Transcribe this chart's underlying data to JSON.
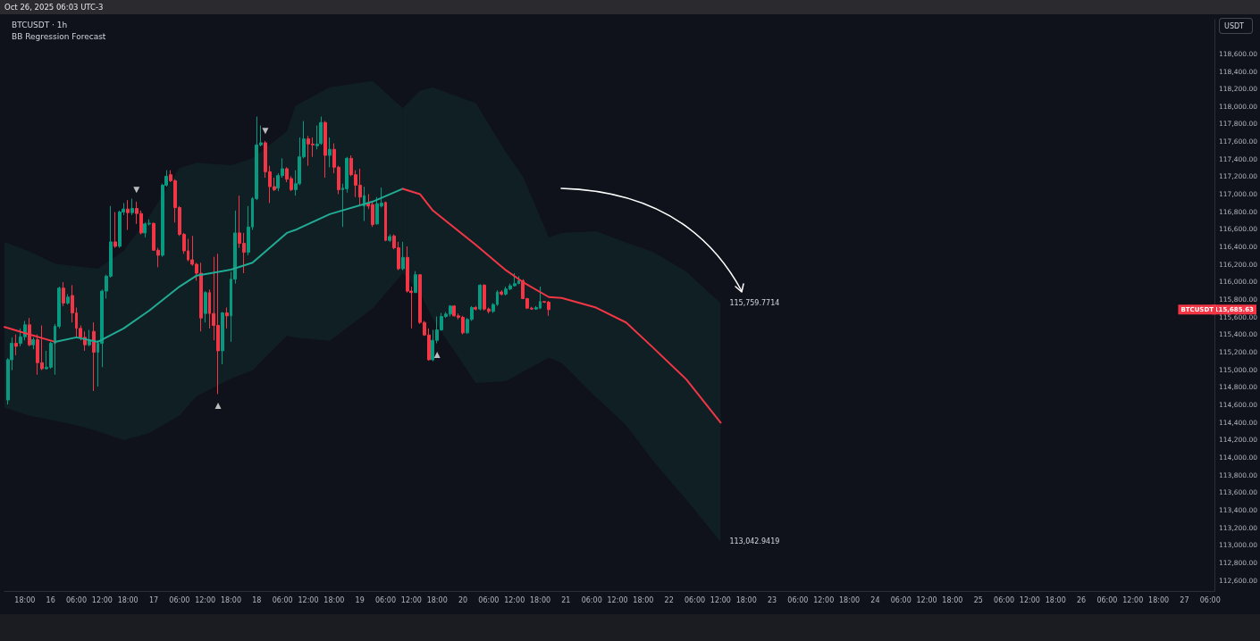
{
  "chart_data": {
    "type": "candlestick",
    "title": "BTCUSDT · 1h",
    "subtitle": "BB Regression Forecast",
    "ylabel": "USDT",
    "grid": false,
    "annotations": [
      "Oct 26, 2025 06:03 UTC-3",
      {
        "text": "115,759.7714",
        "x": "2025-10-22T12:00",
        "y": 115759.7714
      },
      {
        "text": "113,042.9419",
        "x": "2025-10-22T12:00",
        "y": 113042.9419
      },
      "BTCUSDT",
      "115,685.63"
    ],
    "xlim": [
      "2025-10-15T13:15",
      "2025-10-27T07:00"
    ],
    "ylim": [
      112480,
      118990
    ],
    "xticks": [
      {
        "value": "2025-10-15T18:00",
        "label": "18:00"
      },
      {
        "value": "2025-10-16T00:00",
        "label": "16"
      },
      {
        "value": "2025-10-16T06:00",
        "label": "06:00"
      },
      {
        "value": "2025-10-16T12:00",
        "label": "12:00"
      },
      {
        "value": "2025-10-16T18:00",
        "label": "18:00"
      },
      {
        "value": "2025-10-17T00:00",
        "label": "17"
      },
      {
        "value": "2025-10-17T06:00",
        "label": "06:00"
      },
      {
        "value": "2025-10-17T12:00",
        "label": "12:00"
      },
      {
        "value": "2025-10-17T18:00",
        "label": "18:00"
      },
      {
        "value": "2025-10-18T00:00",
        "label": "18"
      },
      {
        "value": "2025-10-18T06:00",
        "label": "06:00"
      },
      {
        "value": "2025-10-18T12:00",
        "label": "12:00"
      },
      {
        "value": "2025-10-18T18:00",
        "label": "18:00"
      },
      {
        "value": "2025-10-19T00:00",
        "label": "19"
      },
      {
        "value": "2025-10-19T06:00",
        "label": "06:00"
      },
      {
        "value": "2025-10-19T12:00",
        "label": "12:00"
      },
      {
        "value": "2025-10-19T18:00",
        "label": "18:00"
      },
      {
        "value": "2025-10-20T00:00",
        "label": "20"
      },
      {
        "value": "2025-10-20T06:00",
        "label": "06:00"
      },
      {
        "value": "2025-10-20T12:00",
        "label": "12:00"
      },
      {
        "value": "2025-10-20T18:00",
        "label": "18:00"
      },
      {
        "value": "2025-10-21T00:00",
        "label": "21"
      },
      {
        "value": "2025-10-21T06:00",
        "label": "06:00"
      },
      {
        "value": "2025-10-21T12:00",
        "label": "12:00"
      },
      {
        "value": "2025-10-21T18:00",
        "label": "18:00"
      },
      {
        "value": "2025-10-22T00:00",
        "label": "22"
      },
      {
        "value": "2025-10-22T06:00",
        "label": "06:00"
      },
      {
        "value": "2025-10-22T12:00",
        "label": "12:00"
      },
      {
        "value": "2025-10-22T18:00",
        "label": "18:00"
      },
      {
        "value": "2025-10-23T00:00",
        "label": "23"
      },
      {
        "value": "2025-10-23T06:00",
        "label": "06:00"
      },
      {
        "value": "2025-10-23T12:00",
        "label": "12:00"
      },
      {
        "value": "2025-10-23T18:00",
        "label": "18:00"
      },
      {
        "value": "2025-10-24T00:00",
        "label": "24"
      },
      {
        "value": "2025-10-24T06:00",
        "label": "06:00"
      },
      {
        "value": "2025-10-24T12:00",
        "label": "12:00"
      },
      {
        "value": "2025-10-24T18:00",
        "label": "18:00"
      },
      {
        "value": "2025-10-25T00:00",
        "label": "25"
      },
      {
        "value": "2025-10-25T06:00",
        "label": "06:00"
      },
      {
        "value": "2025-10-25T12:00",
        "label": "12:00"
      },
      {
        "value": "2025-10-25T18:00",
        "label": "18:00"
      },
      {
        "value": "2025-10-26T00:00",
        "label": "26"
      },
      {
        "value": "2025-10-26T06:00",
        "label": "06:00"
      },
      {
        "value": "2025-10-26T12:00",
        "label": "12:00"
      },
      {
        "value": "2025-10-26T18:00",
        "label": "18:00"
      },
      {
        "value": "2025-10-27T00:00",
        "label": "27"
      },
      {
        "value": "2025-10-27T06:00",
        "label": "06:00"
      }
    ],
    "yticks": [
      {
        "value": 112600,
        "label": "112,600.00"
      },
      {
        "value": 112800,
        "label": "112,800.00"
      },
      {
        "value": 113000,
        "label": "113,000.00"
      },
      {
        "value": 113200,
        "label": "113,200.00"
      },
      {
        "value": 113400,
        "label": "113,400.00"
      },
      {
        "value": 113600,
        "label": "113,600.00"
      },
      {
        "value": 113800,
        "label": "113,800.00"
      },
      {
        "value": 114000,
        "label": "114,000.00"
      },
      {
        "value": 114200,
        "label": "114,200.00"
      },
      {
        "value": 114400,
        "label": "114,400.00"
      },
      {
        "value": 114600,
        "label": "114,600.00"
      },
      {
        "value": 114800,
        "label": "114,800.00"
      },
      {
        "value": 115000,
        "label": "115,000.00"
      },
      {
        "value": 115200,
        "label": "115,200.00"
      },
      {
        "value": 115400,
        "label": "115,400.00"
      },
      {
        "value": 115600,
        "label": "115,600.00"
      },
      {
        "value": 115800,
        "label": "115,800.00"
      },
      {
        "value": 116000,
        "label": "116,000.00"
      },
      {
        "value": 116200,
        "label": "116,200.00"
      },
      {
        "value": 116400,
        "label": "116,400.00"
      },
      {
        "value": 116600,
        "label": "116,600.00"
      },
      {
        "value": 116800,
        "label": "116,800.00"
      },
      {
        "value": 117000,
        "label": "117,000.00"
      },
      {
        "value": 117200,
        "label": "117,200.00"
      },
      {
        "value": 117400,
        "label": "117,400.00"
      },
      {
        "value": 117600,
        "label": "117,600.00"
      },
      {
        "value": 117800,
        "label": "117,800.00"
      },
      {
        "value": 118000,
        "label": "118,000.00"
      },
      {
        "value": 118200,
        "label": "118,200.00"
      },
      {
        "value": 118400,
        "label": "118,400.00"
      },
      {
        "value": 118600,
        "label": "118,600.00"
      }
    ],
    "x": [
      "2025-10-15T14:00",
      "2025-10-15T15:00",
      "2025-10-15T16:00",
      "2025-10-15T17:00",
      "2025-10-15T18:00",
      "2025-10-15T19:00",
      "2025-10-15T20:00",
      "2025-10-15T21:00",
      "2025-10-15T22:00",
      "2025-10-15T23:00",
      "2025-10-16T00:00",
      "2025-10-16T01:00",
      "2025-10-16T02:00",
      "2025-10-16T03:00",
      "2025-10-16T04:00",
      "2025-10-16T05:00",
      "2025-10-16T06:00",
      "2025-10-16T07:00",
      "2025-10-16T08:00",
      "2025-10-16T09:00",
      "2025-10-16T10:00",
      "2025-10-16T11:00",
      "2025-10-16T12:00",
      "2025-10-16T13:00",
      "2025-10-16T14:00",
      "2025-10-16T15:00",
      "2025-10-16T16:00",
      "2025-10-16T17:00",
      "2025-10-16T18:00",
      "2025-10-16T19:00",
      "2025-10-16T20:00",
      "2025-10-16T21:00",
      "2025-10-16T22:00",
      "2025-10-16T23:00",
      "2025-10-17T00:00",
      "2025-10-17T01:00",
      "2025-10-17T02:00",
      "2025-10-17T03:00",
      "2025-10-17T04:00",
      "2025-10-17T05:00",
      "2025-10-17T06:00",
      "2025-10-17T07:00",
      "2025-10-17T08:00",
      "2025-10-17T09:00",
      "2025-10-17T10:00",
      "2025-10-17T11:00",
      "2025-10-17T12:00",
      "2025-10-17T13:00",
      "2025-10-17T14:00",
      "2025-10-17T15:00",
      "2025-10-17T16:00",
      "2025-10-17T17:00",
      "2025-10-17T18:00",
      "2025-10-17T19:00",
      "2025-10-17T20:00",
      "2025-10-17T21:00",
      "2025-10-17T22:00",
      "2025-10-17T23:00",
      "2025-10-18T00:00",
      "2025-10-18T01:00",
      "2025-10-18T02:00",
      "2025-10-18T03:00",
      "2025-10-18T04:00",
      "2025-10-18T05:00",
      "2025-10-18T06:00",
      "2025-10-18T07:00",
      "2025-10-18T08:00",
      "2025-10-18T09:00",
      "2025-10-18T10:00",
      "2025-10-18T11:00",
      "2025-10-18T12:00",
      "2025-10-18T13:00",
      "2025-10-18T14:00",
      "2025-10-18T15:00",
      "2025-10-18T16:00",
      "2025-10-18T17:00",
      "2025-10-18T18:00",
      "2025-10-18T19:00",
      "2025-10-18T20:00",
      "2025-10-18T21:00",
      "2025-10-18T22:00",
      "2025-10-18T23:00",
      "2025-10-19T00:00",
      "2025-10-19T01:00",
      "2025-10-19T02:00",
      "2025-10-19T03:00",
      "2025-10-19T04:00",
      "2025-10-19T05:00",
      "2025-10-19T06:00",
      "2025-10-19T07:00",
      "2025-10-19T08:00",
      "2025-10-19T09:00",
      "2025-10-19T10:00",
      "2025-10-19T11:00",
      "2025-10-19T12:00",
      "2025-10-19T13:00",
      "2025-10-19T14:00",
      "2025-10-19T15:00",
      "2025-10-19T16:00",
      "2025-10-19T17:00",
      "2025-10-19T18:00",
      "2025-10-19T19:00",
      "2025-10-19T20:00",
      "2025-10-19T21:00",
      "2025-10-19T22:00",
      "2025-10-19T23:00",
      "2025-10-20T00:00",
      "2025-10-20T01:00",
      "2025-10-20T02:00",
      "2025-10-20T03:00",
      "2025-10-20T04:00",
      "2025-10-20T05:00",
      "2025-10-20T06:00",
      "2025-10-20T07:00",
      "2025-10-20T08:00",
      "2025-10-20T09:00",
      "2025-10-20T10:00",
      "2025-10-20T11:00",
      "2025-10-20T12:00",
      "2025-10-20T13:00",
      "2025-10-20T14:00",
      "2025-10-20T15:00",
      "2025-10-20T16:00",
      "2025-10-20T17:00",
      "2025-10-20T18:00",
      "2025-10-20T19:00",
      "2025-10-20T20:00"
    ],
    "ohlc": [
      [
        114656,
        115132,
        114605,
        115115
      ],
      [
        115115,
        115370,
        114996,
        115302
      ],
      [
        115302,
        115404,
        115166,
        115268
      ],
      [
        115302,
        115472,
        115268,
        115377
      ],
      [
        115377,
        115557,
        115336,
        115513
      ],
      [
        115513,
        115591,
        115268,
        115285
      ],
      [
        115285,
        115370,
        115234,
        115343
      ],
      [
        115343,
        115404,
        114945,
        115081
      ],
      [
        115081,
        115506,
        114996,
        115013
      ],
      [
        115013,
        115217,
        115003,
        115030
      ],
      [
        115030,
        115319,
        115013,
        115302
      ],
      [
        115302,
        115523,
        114945,
        115496
      ],
      [
        115496,
        115948,
        115472,
        115931
      ],
      [
        115931,
        115999,
        115727,
        115761
      ],
      [
        115761,
        115863,
        115744,
        115829
      ],
      [
        115846,
        115965,
        115540,
        115649
      ],
      [
        115649,
        115710,
        115370,
        115472
      ],
      [
        115472,
        115506,
        115336,
        115370
      ],
      [
        115370,
        115438,
        115217,
        115285
      ],
      [
        115285,
        115455,
        115268,
        115336
      ],
      [
        115438,
        115540,
        114758,
        115200
      ],
      [
        115200,
        115336,
        114809,
        115302
      ],
      [
        115302,
        115914,
        115030,
        115897
      ],
      [
        115897,
        116084,
        115812,
        116067
      ],
      [
        116067,
        116866,
        116050,
        116458
      ],
      [
        116458,
        116798,
        116390,
        116407
      ],
      [
        116407,
        116815,
        116390,
        116798
      ],
      [
        116798,
        116900,
        116764,
        116832
      ],
      [
        116832,
        116934,
        116594,
        116791
      ],
      [
        116791,
        116951,
        116764,
        116839
      ],
      [
        116839,
        116917,
        116662,
        116781
      ],
      [
        116781,
        116815,
        116543,
        116560
      ],
      [
        116560,
        116679,
        116509,
        116662
      ],
      [
        116662,
        116713,
        116645,
        116669
      ],
      [
        116669,
        116679,
        116356,
        116363
      ],
      [
        116363,
        116390,
        116169,
        116305
      ],
      [
        116305,
        117121,
        116288,
        117104
      ],
      [
        117104,
        117274,
        117087,
        117206
      ],
      [
        117223,
        117274,
        117138,
        117155
      ],
      [
        117155,
        117172,
        116679,
        116849
      ],
      [
        116849,
        116866,
        116526,
        116543
      ],
      [
        116543,
        116560,
        116322,
        116356
      ],
      [
        116356,
        116492,
        116237,
        116254
      ],
      [
        116254,
        116526,
        116186,
        116203
      ],
      [
        116203,
        116220,
        116016,
        116101
      ],
      [
        116101,
        116220,
        115438,
        115591
      ],
      [
        115642,
        115897,
        115540,
        115880
      ],
      [
        115880,
        115914,
        115472,
        115642
      ],
      [
        115642,
        116288,
        115336,
        115506
      ],
      [
        115506,
        116322,
        114724,
        115217
      ],
      [
        115217,
        115659,
        115064,
        115649
      ],
      [
        115649,
        115710,
        115472,
        115615
      ],
      [
        115615,
        116118,
        115319,
        116033
      ],
      [
        116033,
        116815,
        115982,
        116560
      ],
      [
        116560,
        116985,
        116390,
        116441
      ],
      [
        116441,
        116560,
        116101,
        116339
      ],
      [
        116339,
        116866,
        116305,
        116628
      ],
      [
        116628,
        116968,
        116594,
        116951
      ],
      [
        116951,
        117886,
        116934,
        117563
      ],
      [
        117563,
        117784,
        117546,
        117587
      ],
      [
        117587,
        117607,
        117189,
        117257
      ],
      [
        117257,
        117325,
        116900,
        117087
      ],
      [
        117087,
        117189,
        117036,
        117053
      ],
      [
        117070,
        117240,
        117036,
        117213
      ],
      [
        117213,
        117410,
        117189,
        117291
      ],
      [
        117291,
        117308,
        117138,
        117172
      ],
      [
        117179,
        117206,
        117036,
        117053
      ],
      [
        117053,
        117274,
        116985,
        117121
      ],
      [
        117121,
        117648,
        117104,
        117427
      ],
      [
        117427,
        117835,
        117410,
        117631
      ],
      [
        117631,
        117665,
        117325,
        117573
      ],
      [
        117573,
        117648,
        117427,
        117563
      ],
      [
        117553,
        117784,
        117512,
        117573
      ],
      [
        117580,
        117886,
        117563,
        117818
      ],
      [
        117818,
        117835,
        117189,
        117444
      ],
      [
        117444,
        117648,
        117308,
        117512
      ],
      [
        117512,
        117580,
        117240,
        117308
      ],
      [
        117308,
        117325,
        117002,
        117053
      ],
      [
        117053,
        117121,
        116628,
        117070
      ],
      [
        117063,
        117427,
        117019,
        117410
      ],
      [
        117410,
        117444,
        117206,
        117223
      ],
      [
        117223,
        117274,
        116968,
        117104
      ],
      [
        117104,
        117291,
        116866,
        116968
      ],
      [
        116866,
        117087,
        116696,
        116985
      ],
      [
        116900,
        117002,
        116832,
        116866
      ],
      [
        116883,
        116907,
        116628,
        116655
      ],
      [
        116662,
        116968,
        116655,
        116893
      ],
      [
        116866,
        117077,
        116849,
        116900
      ],
      [
        116907,
        116917,
        116465,
        116475
      ],
      [
        116475,
        116543,
        116458,
        116519
      ],
      [
        116526,
        116543,
        116373,
        116390
      ],
      [
        116390,
        116458,
        116135,
        116152
      ],
      [
        116152,
        116458,
        116135,
        116281
      ],
      [
        116281,
        116407,
        115880,
        115897
      ],
      [
        115897,
        115948,
        115472,
        115880
      ],
      [
        115880,
        116125,
        115880,
        116084
      ],
      [
        116084,
        116084,
        115523,
        115540
      ],
      [
        115540,
        115557,
        115387,
        115397
      ],
      [
        115397,
        115472,
        115105,
        115115
      ],
      [
        115115,
        115455,
        115098,
        115336
      ],
      [
        115336,
        115608,
        115302,
        115455
      ],
      [
        115455,
        115649,
        115445,
        115608
      ],
      [
        115608,
        115659,
        115591,
        115635
      ],
      [
        115635,
        115737,
        115608,
        115727
      ],
      [
        115727,
        115737,
        115608,
        115615
      ],
      [
        115615,
        115642,
        115574,
        115598
      ],
      [
        115598,
        115615,
        115404,
        115421
      ],
      [
        115421,
        115591,
        115411,
        115574
      ],
      [
        115574,
        115727,
        115557,
        115710
      ],
      [
        115710,
        115727,
        115676,
        115693
      ],
      [
        115693,
        115975,
        115676,
        115965
      ],
      [
        115965,
        115975,
        115676,
        115693
      ],
      [
        115693,
        115710,
        115642,
        115666
      ],
      [
        115666,
        115761,
        115649,
        115744
      ],
      [
        115744,
        115907,
        115727,
        115887
      ],
      [
        115887,
        115907,
        115846,
        115863
      ],
      [
        115863,
        115948,
        115846,
        115921
      ],
      [
        115921,
        115982,
        115907,
        115958
      ],
      [
        115958,
        116101,
        115948,
        115982
      ],
      [
        115982,
        116067,
        115975,
        116016
      ],
      [
        116016,
        116033,
        115805,
        115812
      ],
      [
        115812,
        115819,
        115693,
        115703
      ],
      [
        115703,
        115717,
        115683,
        115693
      ],
      [
        115693,
        115727,
        115683,
        115710
      ],
      [
        115703,
        115948,
        115693,
        115778
      ],
      [
        115778,
        115785,
        115761,
        115771
      ],
      [
        115771,
        115785,
        115615,
        115685.63
      ]
    ],
    "series": [
      {
        "type": "line",
        "color": "#f23645",
        "x": [
          "2025-10-15T13:15",
          "2025-10-15T19:00",
          "2025-10-16T01:00"
        ],
        "values": [
          115489,
          115404,
          115319
        ],
        "upper": [
          116458,
          116350,
          116210
        ],
        "lower": [
          114570,
          114480,
          114420
        ]
      },
      {
        "type": "line",
        "color": "#22ab94",
        "x": [
          "2025-10-16T01:00",
          "2025-10-16T06:00",
          "2025-10-16T11:00",
          "2025-10-16T17:00",
          "2025-10-16T23:00",
          "2025-10-17T06:00",
          "2025-10-17T10:00",
          "2025-10-17T18:00",
          "2025-10-17T23:00",
          "2025-10-18T07:00",
          "2025-10-18T09:00",
          "2025-10-18T17:00",
          "2025-10-19T03:00",
          "2025-10-19T10:00"
        ],
        "values": [
          115319,
          115370,
          115319,
          115472,
          115676,
          115948,
          116074,
          116142,
          116220,
          116560,
          116594,
          116774,
          116917,
          117063
        ],
        "upper": [
          116210,
          116180,
          116152,
          116356,
          116750,
          117300,
          117360,
          117330,
          117410,
          117716,
          118008,
          118220,
          118290,
          117980
        ],
        "lower": [
          114420,
          114370,
          114300,
          114200,
          114280,
          114480,
          114700,
          114900,
          114996,
          115390,
          115370,
          115330,
          115700,
          116100
        ]
      },
      {
        "type": "line",
        "color": "#f23645",
        "x": [
          "2025-10-19T10:00",
          "2025-10-19T14:00",
          "2025-10-19T17:00",
          "2025-10-20T03:00",
          "2025-10-20T10:00",
          "2025-10-20T14:00",
          "2025-10-20T20:00",
          "2025-10-20T23:00",
          "2025-10-21T07:00",
          "2025-10-21T14:00",
          "2025-10-21T20:00",
          "2025-10-22T04:00",
          "2025-10-22T12:00"
        ],
        "values": [
          117063,
          117002,
          116815,
          116424,
          116135,
          115999,
          115829,
          115819,
          115709,
          115539,
          115266,
          114892,
          114399
        ],
        "upper": [
          117980,
          118180,
          118220,
          118040,
          117480,
          117200,
          116508,
          116560,
          116580,
          116450,
          116350,
          116120,
          115760
        ],
        "lower": [
          116100,
          115880,
          115580,
          114850,
          114870,
          114980,
          115140,
          115080,
          114688,
          114370,
          113980,
          113520,
          113043
        ]
      },
      {
        "type": "scatter",
        "marker": "triangle",
        "color": "#e8e8ea",
        "x": [
          "2025-10-16T20:00",
          "2025-10-17T15:00",
          "2025-10-18T02:00",
          "2025-10-19T18:00"
        ],
        "values": [
          117049,
          114590,
          117722,
          115171
        ]
      }
    ]
  }
}
